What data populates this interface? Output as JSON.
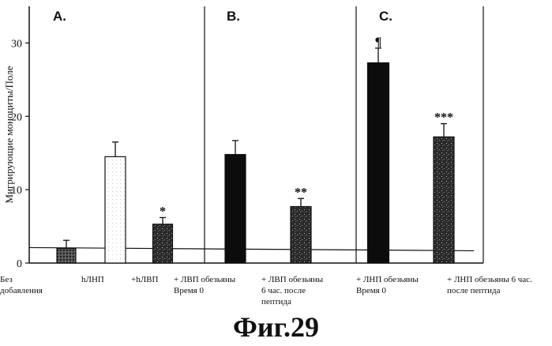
{
  "caption": "Фиг.29",
  "chart_data": {
    "type": "bar",
    "ylabel": "Мигрирующие моноциты/Поле",
    "ylim": [
      0,
      35
    ],
    "yticks": [
      0,
      10,
      20,
      30
    ],
    "panels": [
      "A.",
      "B.",
      "C."
    ],
    "categories": [
      [
        "Без",
        "добавления"
      ],
      [
        "hЛНП"
      ],
      [
        "+hЛВП"
      ],
      [
        "+ ЛВП обезьяны",
        "Время 0"
      ],
      [
        "+ ЛВП обезьяны",
        "6 час. после",
        "пептида"
      ],
      [
        "+ ЛНП обезьяны",
        "Время 0"
      ],
      [
        "+ ЛНП обезьяны 6 час.",
        "после пептида"
      ]
    ],
    "values": [
      2.0,
      14.5,
      5.3,
      14.8,
      7.7,
      27.3,
      17.2
    ],
    "errors": [
      1.1,
      2.0,
      0.9,
      1.9,
      1.1,
      2.0,
      1.8
    ],
    "significance": [
      "",
      "",
      "*",
      "",
      "**",
      "¶",
      "***"
    ],
    "bar_fills": [
      "hatched",
      "white",
      "stipple-dark",
      "black",
      "stipple-dark",
      "black",
      "stipple-dark"
    ],
    "baseline_level": 2.0
  }
}
